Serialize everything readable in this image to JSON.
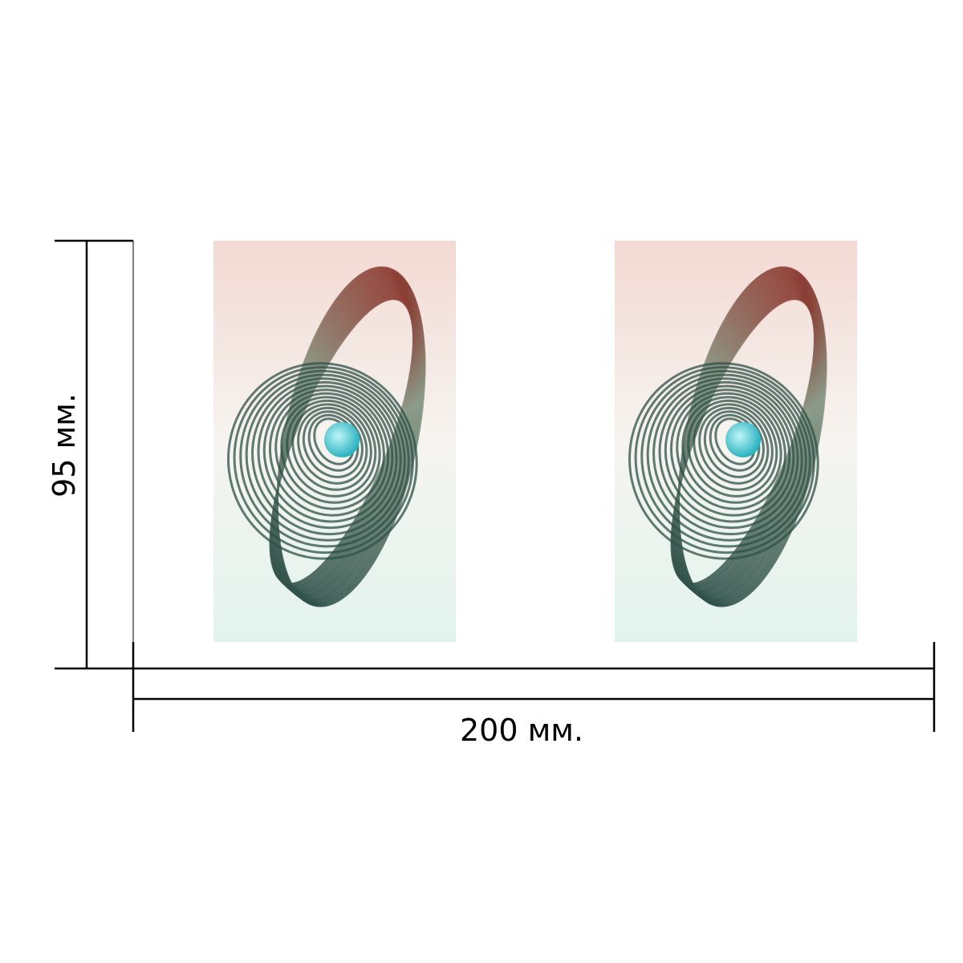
{
  "dimensions": {
    "height_label": "95 мм.",
    "width_label": "200 мм.",
    "line_color": "#000000"
  },
  "panels": [
    {
      "name": "sculpture-photo-left",
      "subject": "spiral-sculpture-icon"
    },
    {
      "name": "sculpture-photo-right",
      "subject": "spiral-sculpture-icon"
    }
  ],
  "colors": {
    "background_top": "#f3d9d3",
    "background_bottom": "#e2f3ee",
    "sculpture_top": "#8a3a30",
    "sculpture_middle": "#8a9a88",
    "sculpture_bottom": "#2e5048",
    "sphere": "#2ab3c0"
  }
}
